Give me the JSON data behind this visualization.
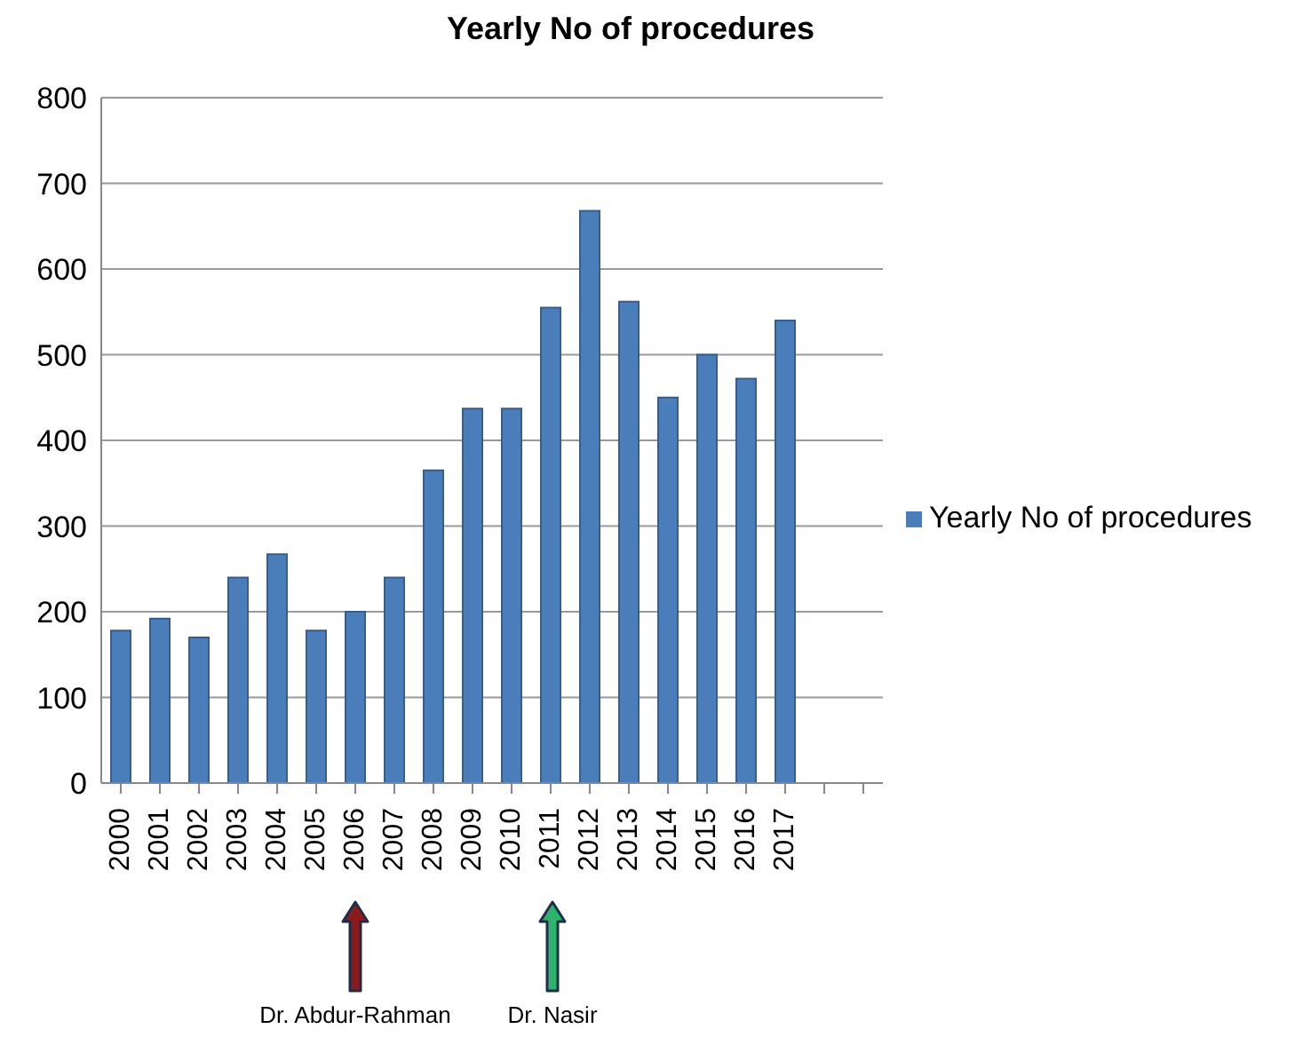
{
  "chart_data": {
    "type": "bar",
    "title": "Yearly No of procedures",
    "categories": [
      "2000",
      "2001",
      "2002",
      "2003",
      "2004",
      "2005",
      "2006",
      "2007",
      "2008",
      "2009",
      "2010",
      "2011",
      "2012",
      "2013",
      "2014",
      "2015",
      "2016",
      "2017",
      null,
      null
    ],
    "series": [
      {
        "name": "Yearly No of procedures",
        "color": "#4a7ebb",
        "values": [
          178,
          192,
          170,
          240,
          267,
          178,
          200,
          240,
          365,
          437,
          437,
          555,
          668,
          562,
          450,
          500,
          472,
          540,
          null,
          null
        ]
      }
    ],
    "ylim": [
      0,
      800
    ],
    "yticks": [
      0,
      100,
      200,
      300,
      400,
      500,
      600,
      700,
      800
    ],
    "grid": "y",
    "legend": "right",
    "annotations": [
      "Dr. Abdur-Rahman",
      "Dr. Nasir"
    ]
  }
}
